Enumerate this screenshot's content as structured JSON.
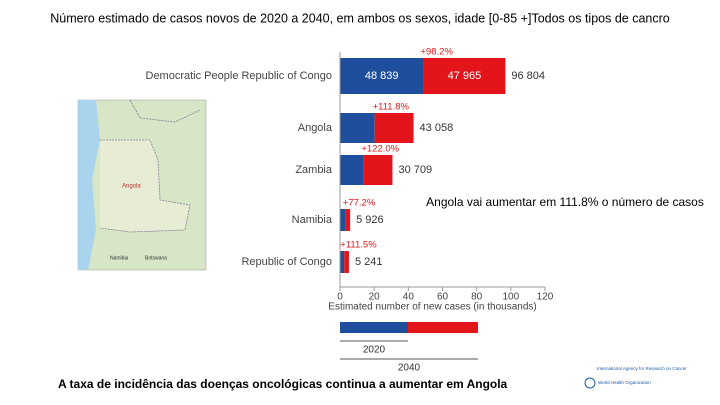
{
  "chart_data": {
    "type": "stacked-hbar",
    "title": "Número estimado de casos novos  de 2020 a 2040, em ambos os sexos, idade [0-85 +]Todos os tipos de cancro",
    "categories": [
      "Democratic People Republic of Congo",
      "Angola",
      "Zambia",
      "Namibia",
      "Republic of Congo"
    ],
    "series": [
      {
        "name": "2020",
        "color": "#1f4e9c",
        "values": [
          48839,
          20330,
          13830,
          3344,
          2478
        ],
        "value_labels": [
          "48 839",
          null,
          null,
          null,
          null
        ]
      },
      {
        "name": "2040",
        "color": "#e3151a",
        "values": [
          47965,
          22728,
          16879,
          2582,
          2763
        ],
        "value_labels": [
          "47 965",
          null,
          null,
          null,
          null
        ]
      }
    ],
    "total_labels": [
      "96 804",
      "43 058",
      "30 709",
      "5 926",
      "5 241"
    ],
    "change_labels": [
      "+98.2%",
      "+111.8%",
      "+122.0%",
      "+77.2%",
      "+111.5%"
    ],
    "xlim": [
      0,
      120000
    ],
    "xticks": [
      {
        "value": 0,
        "label": "0"
      },
      {
        "value": 20000,
        "label": "20"
      },
      {
        "value": 40000,
        "label": "40"
      },
      {
        "value": 60000,
        "label": "60"
      },
      {
        "value": 80000,
        "label": "80"
      },
      {
        "value": 100000,
        "label": "100"
      },
      {
        "value": 120000,
        "label": "120"
      }
    ],
    "xlabel": "Estimated number of new cases (in thousands)",
    "annotation": "Angola vai aumentar em 111.8% o número de casos"
  },
  "footer": "A taxa de incidência das doenças oncológicas continua a  aumentar em Angola",
  "map": {
    "labels": [
      "Angola",
      "Namibia",
      "Botswana"
    ]
  },
  "logo": {
    "agency": "International Agency for Research on Cancer",
    "who": "World Health Organization"
  }
}
